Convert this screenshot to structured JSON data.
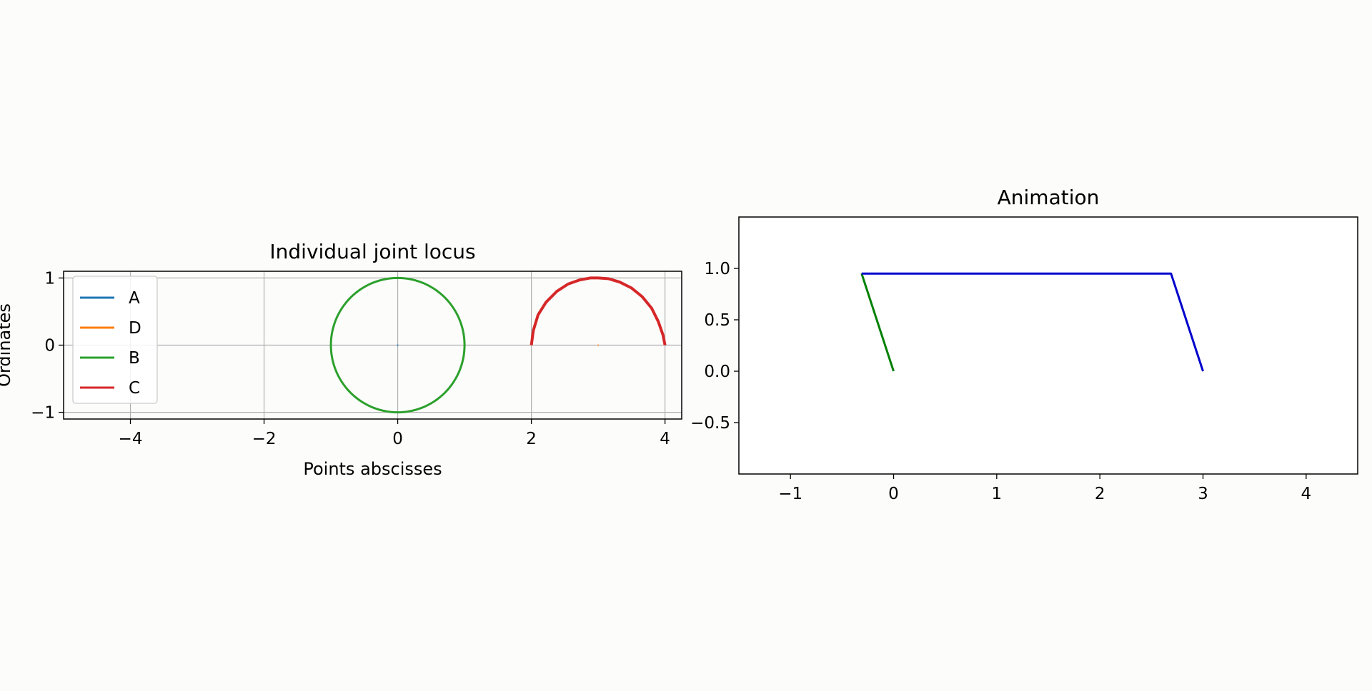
{
  "chart_data": [
    {
      "type": "line",
      "title": "Individual joint locus",
      "xlabel": "Points abscisses",
      "ylabel": "Ordinates",
      "xlim": [
        -5,
        4.25
      ],
      "ylim": [
        -1.1,
        1.1
      ],
      "xticks": [
        -4,
        -2,
        0,
        2,
        4
      ],
      "yticks": [
        -1,
        0,
        1
      ],
      "grid": true,
      "legend": {
        "placement": "upper-left",
        "entries": [
          "A",
          "D",
          "B",
          "C"
        ]
      },
      "series": [
        {
          "name": "A",
          "color": "#1f77b4",
          "x": [
            0
          ],
          "y": [
            0
          ]
        },
        {
          "name": "D",
          "color": "#ff7f0e",
          "x": [
            3
          ],
          "y": [
            0
          ]
        },
        {
          "name": "B",
          "color": "#2ca02c",
          "shape": "circle",
          "center": [
            0,
            0
          ],
          "radius": 1
        },
        {
          "name": "C",
          "color": "#d62728",
          "x": [
            2.0,
            2.03,
            2.1,
            2.22,
            2.38,
            2.55,
            2.72,
            2.88,
            3.0,
            3.15,
            3.32,
            3.5,
            3.66,
            3.8,
            3.9,
            3.97,
            4.0
          ],
          "y": [
            0.0,
            0.22,
            0.45,
            0.64,
            0.8,
            0.91,
            0.97,
            1.0,
            1.0,
            0.99,
            0.94,
            0.85,
            0.72,
            0.55,
            0.35,
            0.15,
            0.0
          ]
        }
      ]
    },
    {
      "type": "line",
      "title": "Animation",
      "xlim": [
        -1.5,
        4.5
      ],
      "ylim": [
        -1.0,
        1.5
      ],
      "xticks": [
        -1,
        0,
        1,
        2,
        3,
        4
      ],
      "yticks": [
        -0.5,
        0.0,
        0.5,
        1.0
      ],
      "grid": false,
      "series": [
        {
          "color": "#008000",
          "x": [
            0,
            -0.31
          ],
          "y": [
            0,
            0.95
          ]
        },
        {
          "color": "#0000cd",
          "x": [
            -0.31,
            2.69,
            3.0
          ],
          "y": [
            0.95,
            0.95,
            0.0
          ]
        }
      ]
    }
  ]
}
